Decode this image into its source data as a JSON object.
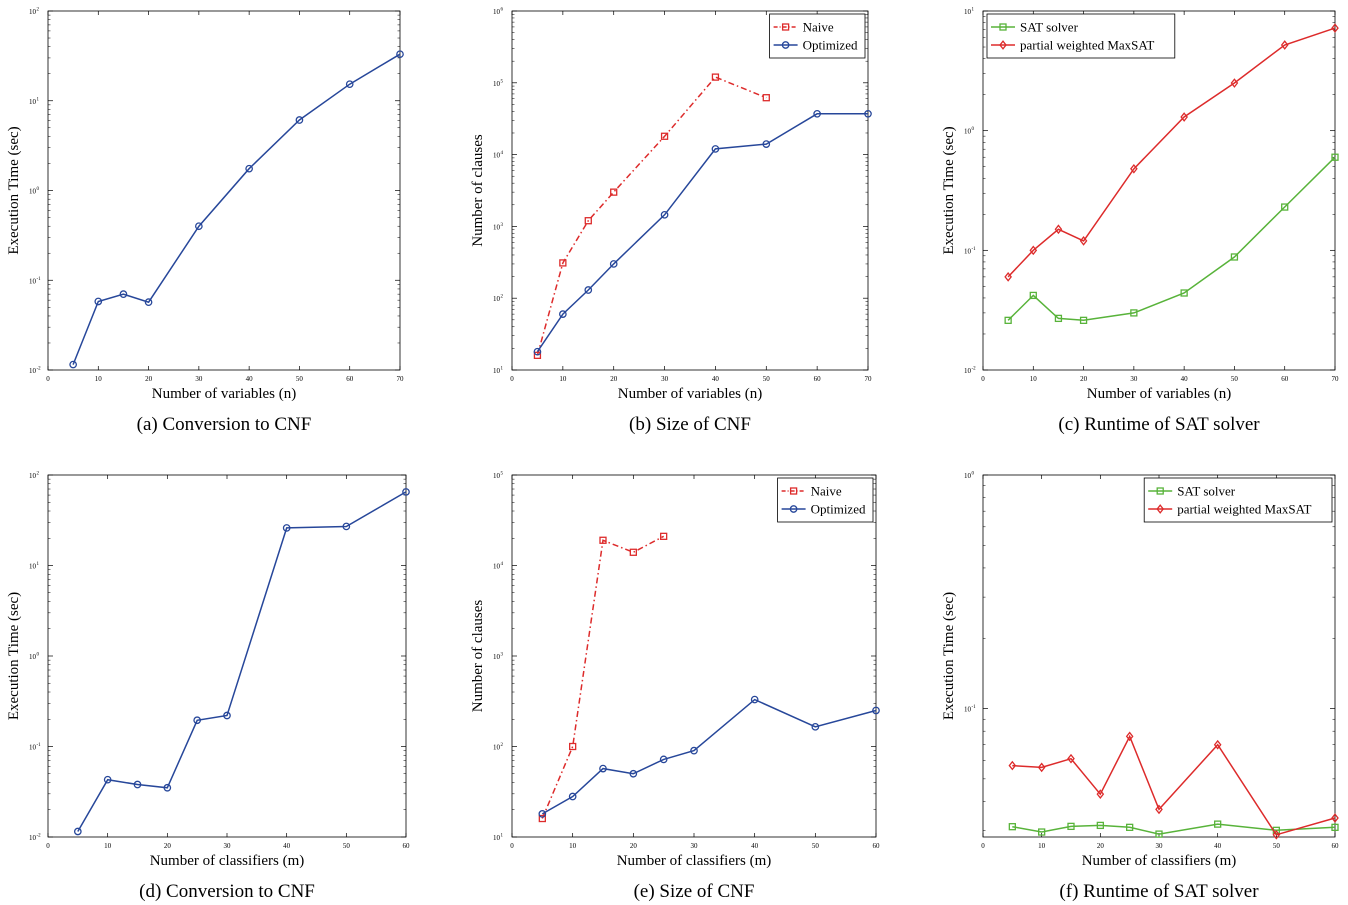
{
  "chart_data": [
    {
      "id": "a",
      "type": "line",
      "caption": "(a) Conversion to CNF",
      "xlabel": "Number of variables (n)",
      "ylabel": "Execution Time (sec)",
      "xlim": [
        0,
        70
      ],
      "xticks": [
        0,
        10,
        20,
        30,
        40,
        50,
        60,
        70
      ],
      "ylim_exp": [
        -2,
        2
      ],
      "log_y": true,
      "legend": null,
      "series": [
        {
          "color": "#27479a",
          "marker": "circle",
          "dashed": false,
          "x": [
            5,
            10,
            15,
            20,
            30,
            40,
            50,
            60,
            70
          ],
          "y": [
            0.0115,
            0.058,
            0.07,
            0.057,
            0.4,
            1.75,
            6.1,
            15.3,
            33
          ]
        }
      ]
    },
    {
      "id": "b",
      "type": "line",
      "caption": "(b) Size of CNF",
      "xlabel": "Number of variables (n)",
      "ylabel": "Number of clauses",
      "xlim": [
        0,
        70
      ],
      "xticks": [
        0,
        10,
        20,
        30,
        40,
        50,
        60,
        70
      ],
      "ylim_exp": [
        1,
        6
      ],
      "log_y": true,
      "legend": "top-right",
      "series": [
        {
          "name": "Naive",
          "color": "#dd2b2b",
          "marker": "square",
          "dashed": true,
          "x": [
            5,
            10,
            15,
            20,
            30,
            40,
            50
          ],
          "y": [
            16,
            310,
            1200,
            3000,
            18000,
            120000,
            62000
          ]
        },
        {
          "name": "Optimized",
          "color": "#27479a",
          "marker": "circle",
          "dashed": false,
          "x": [
            5,
            10,
            15,
            20,
            30,
            40,
            50,
            60,
            70
          ],
          "y": [
            18,
            60,
            130,
            300,
            1450,
            12000,
            14000,
            37000,
            37000
          ]
        }
      ]
    },
    {
      "id": "c",
      "type": "line",
      "caption": "(c) Runtime of SAT solver",
      "xlabel": "Number of variables (n)",
      "ylabel": "Execution Time (sec)",
      "xlim": [
        0,
        70
      ],
      "xticks": [
        0,
        10,
        20,
        30,
        40,
        50,
        60,
        70
      ],
      "ylim_exp": [
        -2,
        1
      ],
      "log_y": true,
      "legend": "top-left",
      "series": [
        {
          "name": "SAT solver",
          "color": "#58b33a",
          "marker": "square",
          "dashed": false,
          "x": [
            5,
            10,
            15,
            20,
            30,
            40,
            50,
            60,
            70
          ],
          "y": [
            0.026,
            0.042,
            0.027,
            0.026,
            0.03,
            0.044,
            0.088,
            0.23,
            0.6
          ]
        },
        {
          "name": "partial weighted MaxSAT",
          "color": "#dd2b2b",
          "marker": "diamond",
          "dashed": false,
          "x": [
            5,
            10,
            15,
            20,
            30,
            40,
            50,
            60,
            70
          ],
          "y": [
            0.06,
            0.1,
            0.15,
            0.12,
            0.48,
            1.3,
            2.5,
            5.2,
            7.2
          ]
        }
      ]
    },
    {
      "id": "d",
      "type": "line",
      "caption": "(d) Conversion to CNF",
      "xlabel": "Number of classifiers (m)",
      "ylabel": "Execution Time (sec)",
      "xlim": [
        0,
        60
      ],
      "xticks": [
        0,
        10,
        20,
        30,
        40,
        50,
        60
      ],
      "ylim_exp": [
        -2,
        2
      ],
      "log_y": true,
      "legend": null,
      "series": [
        {
          "color": "#27479a",
          "marker": "circle",
          "dashed": false,
          "x": [
            5,
            10,
            15,
            20,
            25,
            30,
            40,
            50,
            60
          ],
          "y": [
            0.0115,
            0.043,
            0.038,
            0.035,
            0.195,
            0.22,
            26,
            27,
            65
          ]
        }
      ]
    },
    {
      "id": "e",
      "type": "line",
      "caption": "(e) Size of CNF",
      "xlabel": "Number of classifiers (m)",
      "ylabel": "Number of clauses",
      "xlim": [
        0,
        60
      ],
      "xticks": [
        0,
        10,
        20,
        30,
        40,
        50,
        60
      ],
      "ylim_exp": [
        1,
        5
      ],
      "log_y": true,
      "legend": "top-right",
      "series": [
        {
          "name": "Naive",
          "color": "#dd2b2b",
          "marker": "square",
          "dashed": true,
          "x": [
            5,
            10,
            15,
            20,
            25
          ],
          "y": [
            16,
            100,
            19000,
            14000,
            21000
          ]
        },
        {
          "name": "Optimized",
          "color": "#27479a",
          "marker": "circle",
          "dashed": false,
          "x": [
            5,
            10,
            15,
            20,
            25,
            30,
            40,
            50,
            60
          ],
          "y": [
            18,
            28,
            57,
            50,
            72,
            90,
            330,
            165,
            250
          ]
        }
      ]
    },
    {
      "id": "f",
      "type": "line",
      "caption": "(f) Runtime of SAT solver",
      "xlabel": "Number of classifiers (m)",
      "ylabel": "Execution Time (sec)",
      "xlim": [
        0,
        60
      ],
      "xticks": [
        0,
        10,
        20,
        30,
        40,
        50,
        60
      ],
      "ylim_exp": [
        -1.55,
        0
      ],
      "yticks_exp": [
        -1,
        0
      ],
      "log_y": true,
      "legend": "top-right",
      "series": [
        {
          "name": "SAT solver",
          "color": "#58b33a",
          "marker": "square",
          "dashed": false,
          "x": [
            5,
            10,
            15,
            20,
            25,
            30,
            40,
            50,
            60
          ],
          "y": [
            0.0312,
            0.0296,
            0.0313,
            0.0316,
            0.031,
            0.029,
            0.032,
            0.0301,
            0.031
          ]
        },
        {
          "name": "partial weighted MaxSAT",
          "color": "#dd2b2b",
          "marker": "diamond",
          "dashed": false,
          "x": [
            5,
            10,
            15,
            20,
            25,
            30,
            40,
            50,
            60
          ],
          "y": [
            0.057,
            0.056,
            0.061,
            0.043,
            0.076,
            0.037,
            0.07,
            0.0288,
            0.034
          ]
        }
      ]
    }
  ]
}
